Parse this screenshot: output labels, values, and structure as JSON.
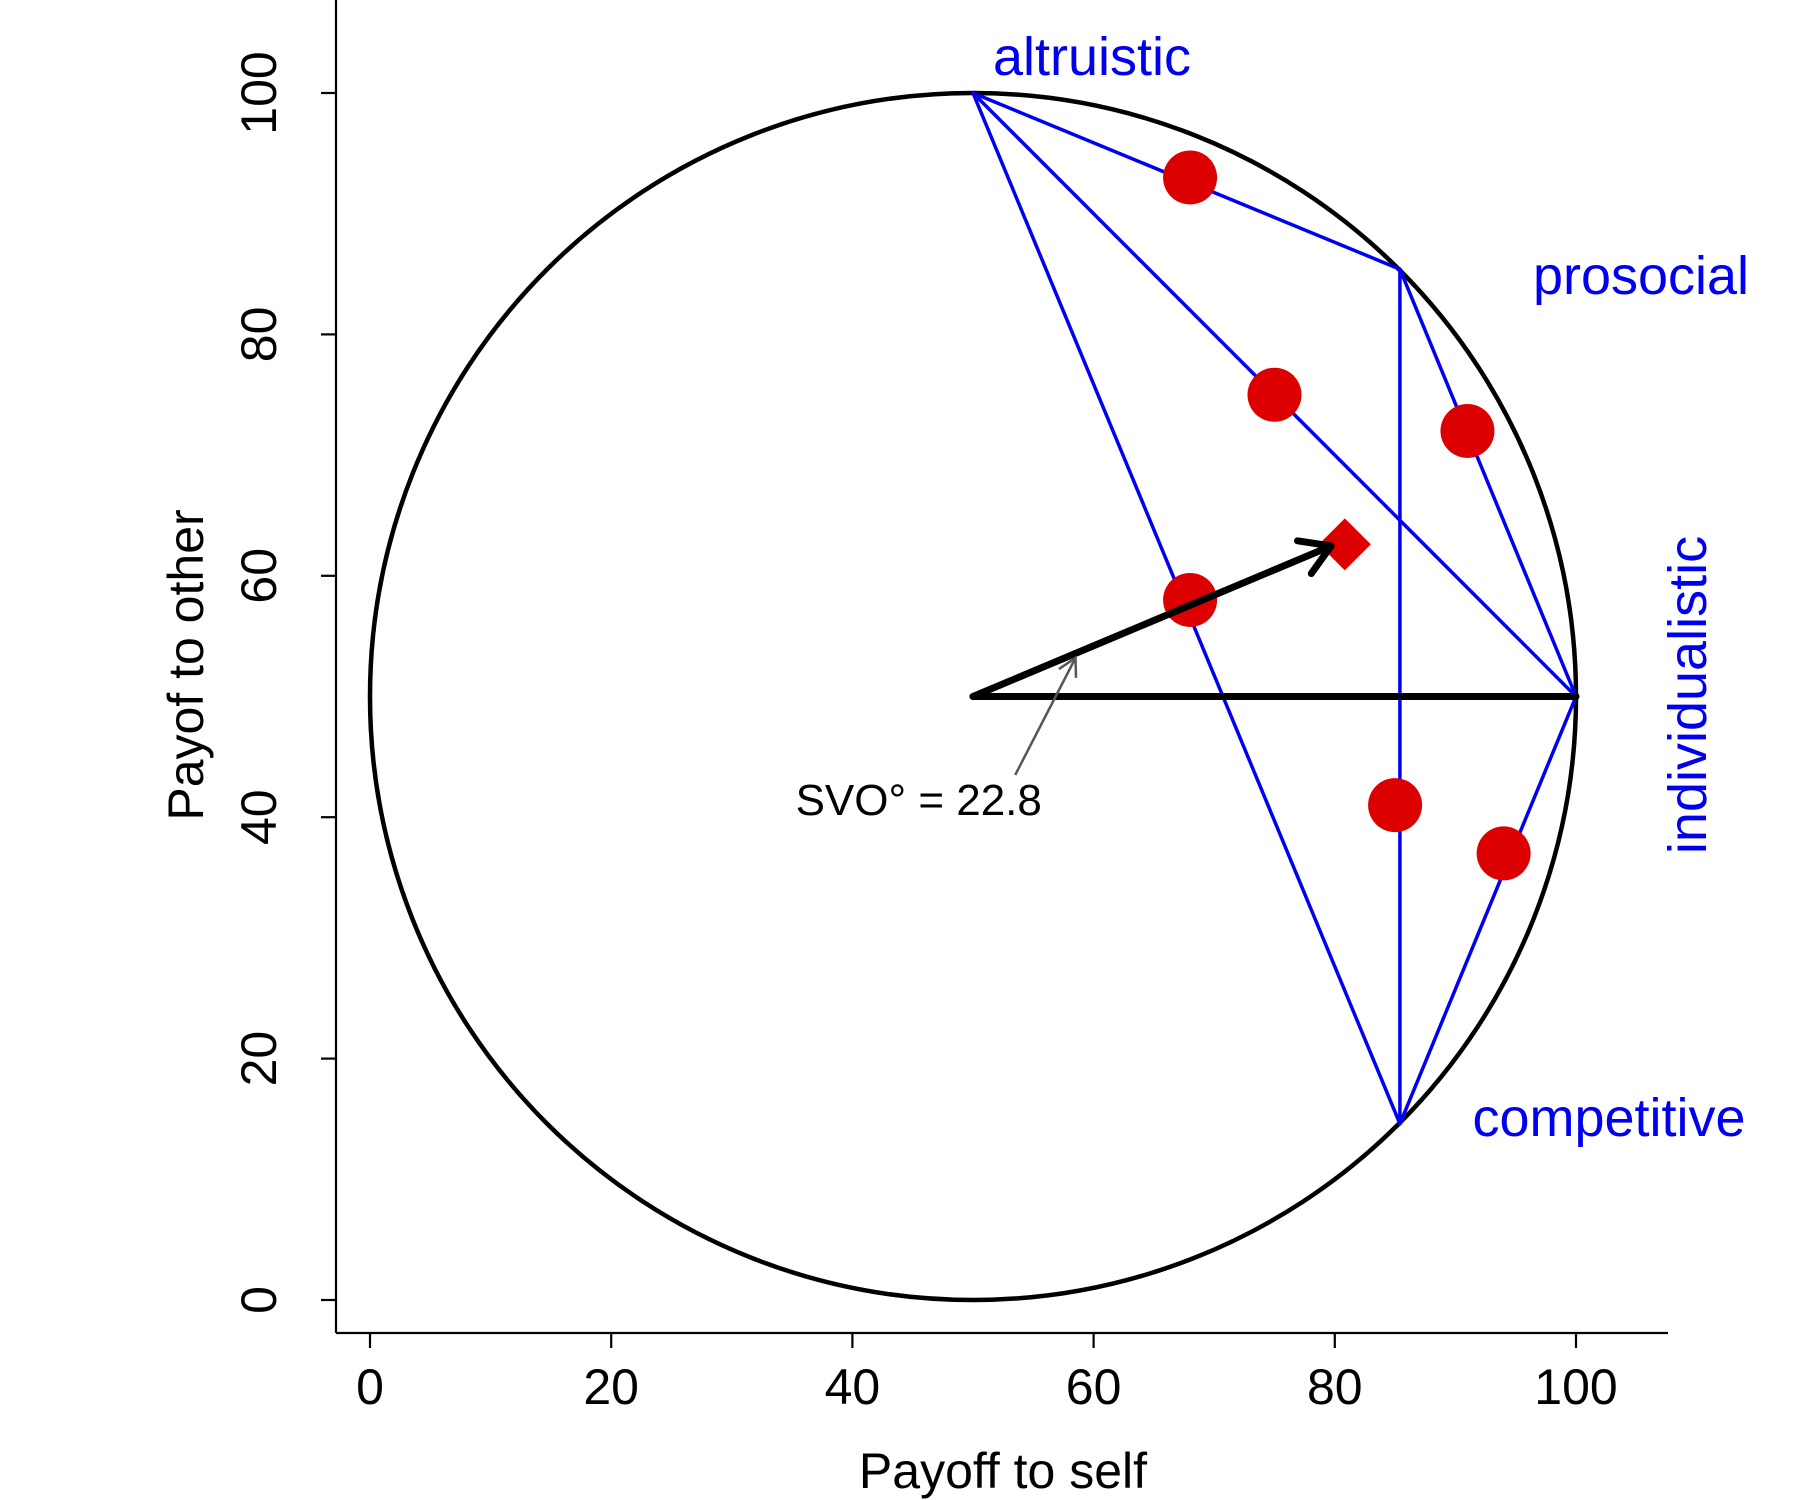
{
  "chart_data": {
    "type": "scatter",
    "title": "",
    "xlabel": "Payoff to self",
    "ylabel": "Payof to other",
    "xlim": [
      0,
      100
    ],
    "ylim": [
      0,
      100
    ],
    "xticks": [
      "0",
      "20",
      "40",
      "60",
      "80",
      "100"
    ],
    "yticks": [
      "0",
      "20",
      "40",
      "60",
      "80",
      "100"
    ],
    "grid": false,
    "circle": {
      "center": [
        50,
        50
      ],
      "radius": 50
    },
    "category_points": [
      {
        "label": "altruistic",
        "x": 50,
        "y": 100
      },
      {
        "label": "prosocial",
        "x": 85.4,
        "y": 85.4
      },
      {
        "label": "individualistic",
        "x": 100,
        "y": 50
      },
      {
        "label": "competitive",
        "x": 85.4,
        "y": 14.6
      }
    ],
    "slider_lines": [
      {
        "from": [
          50,
          100
        ],
        "to": [
          85.4,
          85.4
        ]
      },
      {
        "from": [
          50,
          100
        ],
        "to": [
          100,
          50
        ]
      },
      {
        "from": [
          50,
          100
        ],
        "to": [
          85.4,
          14.6
        ]
      },
      {
        "from": [
          85.4,
          85.4
        ],
        "to": [
          100,
          50
        ]
      },
      {
        "from": [
          85.4,
          85.4
        ],
        "to": [
          85.4,
          14.6
        ]
      },
      {
        "from": [
          100,
          50
        ],
        "to": [
          85.4,
          14.6
        ]
      }
    ],
    "points": [
      {
        "x": 68,
        "y": 93
      },
      {
        "x": 75,
        "y": 75
      },
      {
        "x": 91,
        "y": 72
      },
      {
        "x": 68,
        "y": 58
      },
      {
        "x": 85,
        "y": 41
      },
      {
        "x": 94,
        "y": 37
      }
    ],
    "mean_point": {
      "x": 80,
      "y": 62.6
    },
    "svo_vector": {
      "from": [
        50,
        50
      ],
      "to": [
        80,
        62.6
      ]
    },
    "reference_line": {
      "from": [
        50,
        50
      ],
      "to": [
        100,
        50
      ]
    },
    "annotation": {
      "text": "SVO° = 22.8",
      "text_at": [
        45.5,
        40.2
      ],
      "arrow_from": [
        53.5,
        43.5
      ],
      "arrow_to": [
        58.5,
        53.2
      ]
    },
    "colors": {
      "lines": "#0000ee",
      "points": "#dd0000",
      "circle": "#000000",
      "vector": "#000000",
      "annotation_arrow": "#555555"
    }
  }
}
